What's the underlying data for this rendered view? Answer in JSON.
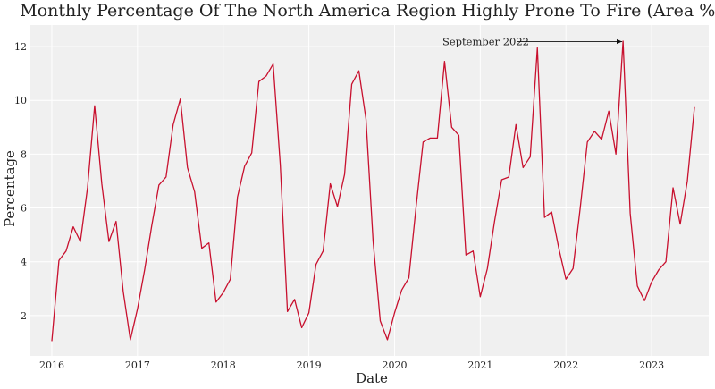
{
  "chart_data": {
    "type": "line",
    "title": "Monthly Percentage Of The North America Region Highly Prone To Fire (Area %)",
    "xlabel": "Date",
    "ylabel": "Percentage",
    "x_ticks": [
      "2016",
      "2017",
      "2018",
      "2019",
      "2020",
      "2021",
      "2022",
      "2023"
    ],
    "y_ticks": [
      2,
      4,
      6,
      8,
      10,
      12
    ],
    "xlim": [
      "2015-10-01",
      "2023-09-01"
    ],
    "ylim": [
      0.5,
      12.8
    ],
    "grid": true,
    "background_color": "#f0f0f0",
    "line_color": "#c8102e",
    "x_start": "2016-01",
    "x_step": "1 month",
    "values": [
      1.05,
      4.05,
      4.4,
      5.3,
      4.75,
      6.75,
      9.8,
      6.9,
      4.75,
      5.5,
      2.9,
      1.1,
      2.25,
      3.7,
      5.35,
      6.85,
      7.15,
      9.1,
      10.05,
      7.5,
      6.6,
      4.5,
      4.7,
      2.5,
      2.85,
      3.35,
      6.4,
      7.55,
      8.05,
      10.7,
      10.9,
      11.35,
      7.6,
      2.15,
      2.6,
      1.55,
      2.1,
      3.9,
      4.4,
      6.9,
      6.05,
      7.25,
      10.6,
      11.1,
      9.3,
      4.75,
      1.8,
      1.1,
      2.1,
      2.95,
      3.4,
      6.0,
      8.45,
      8.6,
      8.6,
      11.45,
      9.0,
      8.7,
      4.25,
      4.4,
      2.7,
      3.75,
      5.5,
      7.05,
      7.15,
      9.1,
      7.5,
      7.9,
      11.95,
      5.65,
      5.85,
      4.5,
      3.35,
      3.75,
      6.0,
      8.45,
      8.85,
      8.55,
      9.6,
      8.0,
      12.2,
      5.8,
      3.1,
      2.55,
      3.25,
      3.7,
      4.0,
      6.75,
      5.4,
      7.0,
      9.75
    ],
    "annotations": [
      {
        "text": "September 2022",
        "x": "2022-09",
        "y": 12.2
      }
    ]
  }
}
